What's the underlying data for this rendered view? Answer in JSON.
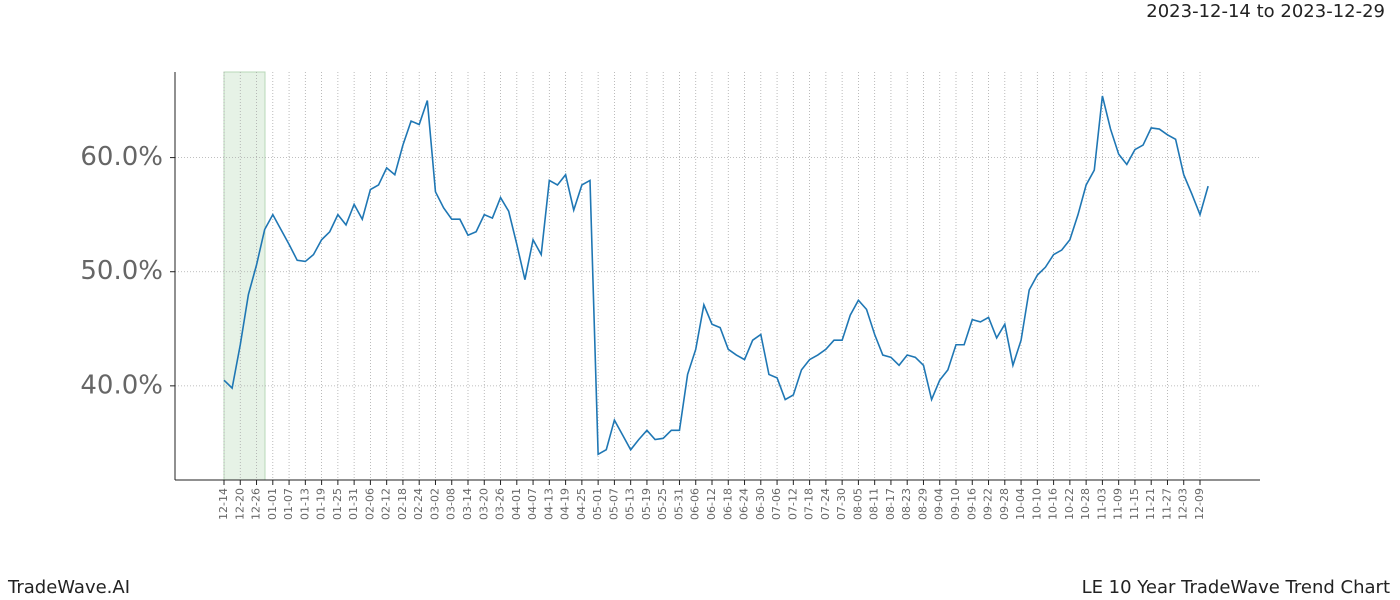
{
  "chart_data": {
    "type": "line",
    "title": "2023-12-14 to 2023-12-29",
    "footer_left": "TradeWave.AI",
    "footer_right": "LE 10 Year TradeWave Trend Chart",
    "categories": [
      "12-14",
      null,
      "12-20",
      null,
      "12-26",
      null,
      "01-01",
      null,
      "01-07",
      null,
      "01-13",
      null,
      "01-19",
      null,
      "01-25",
      null,
      "01-31",
      null,
      "02-06",
      null,
      "02-12",
      null,
      "02-18",
      null,
      "02-24",
      null,
      "03-02",
      null,
      "03-08",
      null,
      "03-14",
      null,
      "03-20",
      null,
      "03-26",
      null,
      "04-01",
      null,
      "04-07",
      null,
      "04-13",
      null,
      "04-19",
      null,
      "04-25",
      null,
      "05-01",
      null,
      "05-07",
      null,
      "05-13",
      null,
      "05-19",
      null,
      "05-25",
      null,
      "05-31",
      null,
      "06-06",
      null,
      "06-12",
      null,
      "06-18",
      null,
      "06-24",
      null,
      "06-30",
      null,
      "07-06",
      null,
      "07-12",
      null,
      "07-18",
      null,
      "07-24",
      null,
      "07-30",
      null,
      "08-05",
      null,
      "08-11",
      null,
      "08-17",
      null,
      "08-23",
      null,
      "08-29",
      null,
      "09-04",
      null,
      "09-10",
      null,
      "09-16",
      null,
      "09-22",
      null,
      "09-28",
      null,
      "10-04",
      null,
      "10-10",
      null,
      "10-16",
      null,
      "10-22",
      null,
      "10-28",
      null,
      "11-03",
      null,
      "11-09",
      null,
      "11-15",
      null,
      "11-21",
      null,
      "11-27",
      null,
      "12-03",
      null,
      "12-09",
      null
    ],
    "series": [
      {
        "color": "#1f77b4",
        "values": [
          40.5,
          39.8,
          43.6,
          48,
          50.6,
          53.7,
          55,
          53.7,
          52.4,
          51,
          50.9,
          51.5,
          52.8,
          53.5,
          55,
          54.1,
          55.9,
          54.6,
          57.2,
          57.6,
          59.1,
          58.5,
          61.1,
          63.2,
          62.9,
          65,
          57,
          55.6,
          54.6,
          54.6,
          53.2,
          53.5,
          55,
          54.7,
          56.5,
          55.3,
          52.4,
          49.3,
          52.8,
          51.5,
          58,
          57.6,
          58.5,
          55.4,
          57.6,
          58,
          34,
          34.4,
          37,
          35.7,
          34.4,
          35.3,
          36.1,
          35.3,
          35.4,
          36.1,
          36.1,
          41,
          43.2,
          47.1,
          45.4,
          45.1,
          43.2,
          42.7,
          42.3,
          44,
          44.5,
          41,
          40.7,
          38.8,
          39.2,
          41.4,
          42.3,
          42.7,
          43.2,
          44,
          44,
          46.2,
          47.5,
          46.7,
          44.5,
          42.7,
          42.5,
          41.8,
          42.7,
          42.5,
          41.8,
          38.8,
          40.5,
          41.4,
          43.6,
          43.6,
          45.8,
          45.6,
          46,
          44.2,
          45.4,
          41.8,
          44,
          48.4,
          49.7,
          50.4,
          51.5,
          51.9,
          52.8,
          55,
          57.6,
          58.9,
          65.4,
          62.5,
          60.3,
          59.4,
          60.7,
          61.1,
          62.6,
          62.5,
          62,
          61.6,
          58.5,
          56.8,
          55,
          57.5
        ]
      }
    ],
    "ylim": [
      31.75,
      67.5
    ],
    "yticks": [
      {
        "value": 40,
        "label": "40.0%"
      },
      {
        "value": 50,
        "label": "50.0%"
      },
      {
        "value": 60,
        "label": "60.0%"
      }
    ],
    "grid": true
  }
}
